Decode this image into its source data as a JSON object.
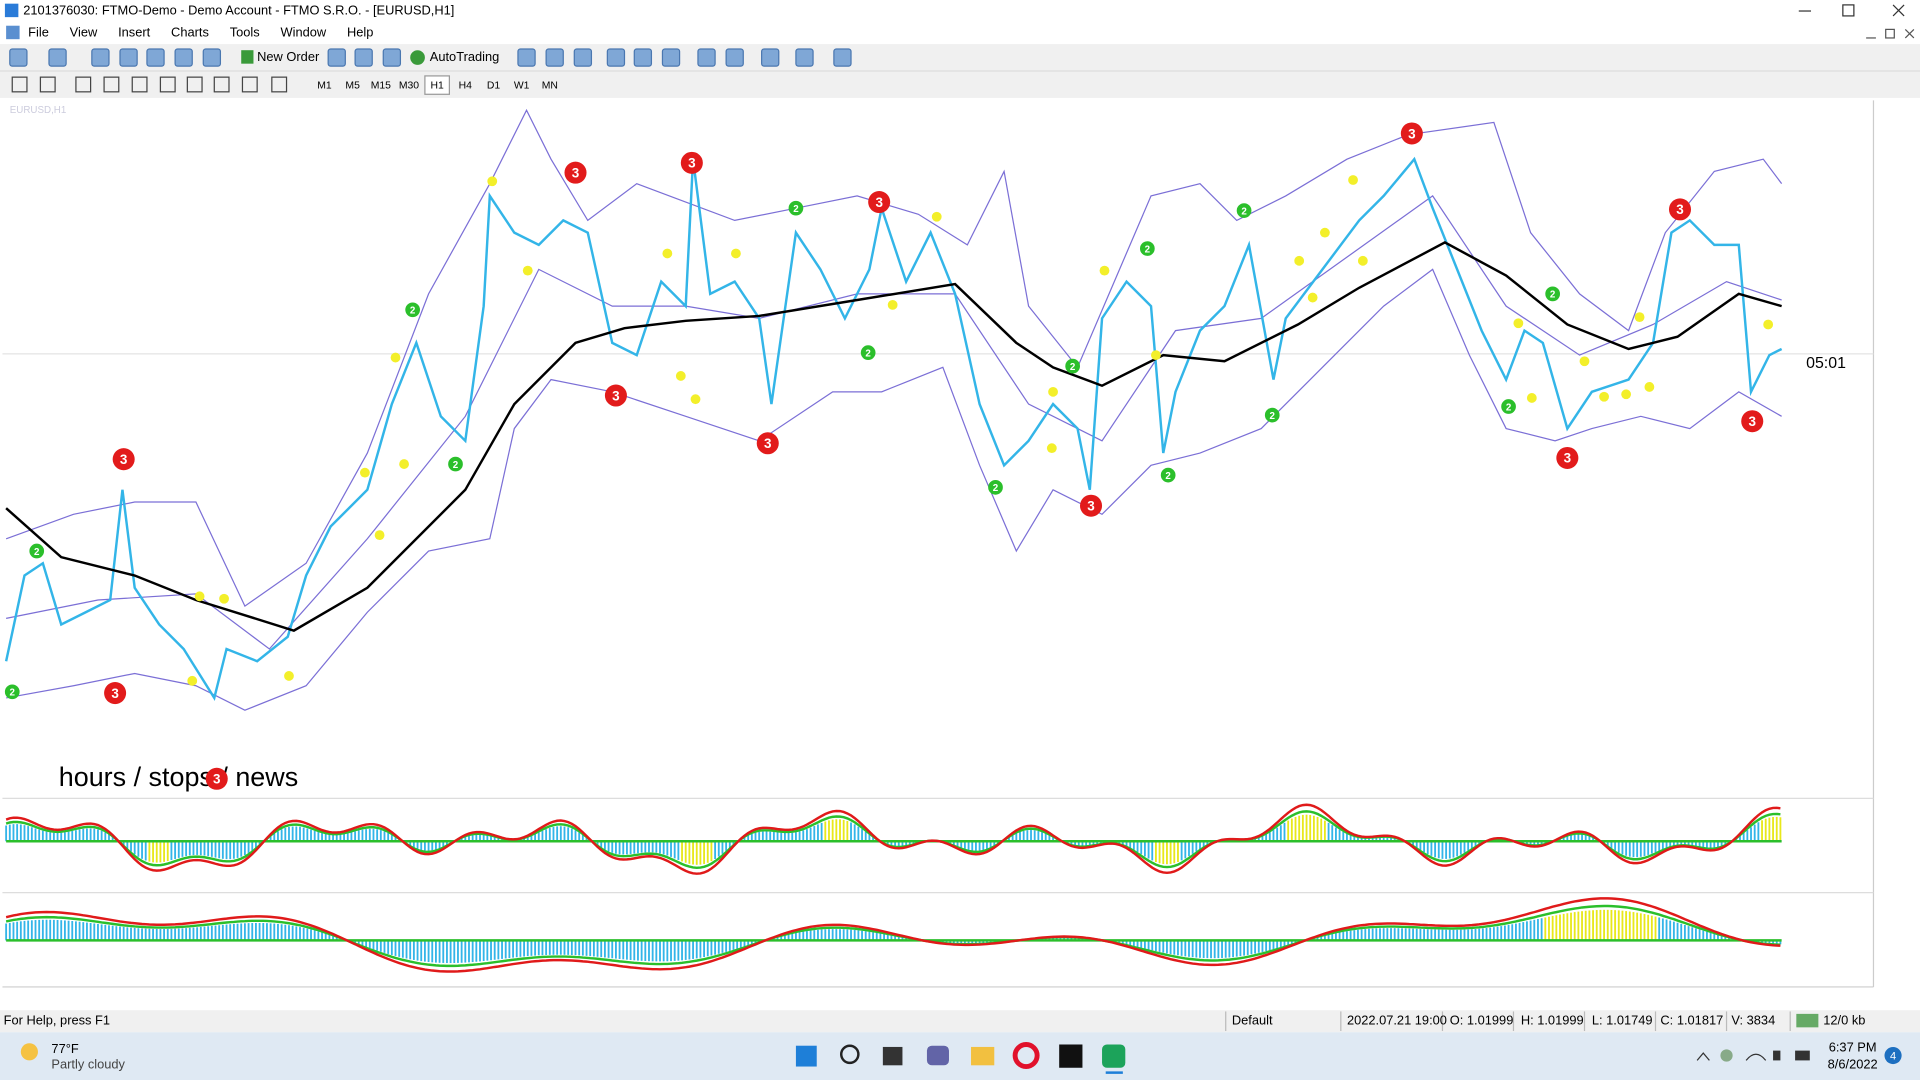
{
  "window": {
    "title": "2101376030: FTMO-Demo - Demo Account - FTMO S.R.O. - [EURUSD,H1]",
    "menu": [
      "File",
      "View",
      "Insert",
      "Charts",
      "Tools",
      "Window",
      "Help"
    ]
  },
  "toolbar": {
    "new_order": "New Order",
    "auto_trading": "AutoTrading",
    "timeframes": [
      "M1",
      "M5",
      "M15",
      "M30",
      "H1",
      "H4",
      "D1",
      "W1",
      "MN"
    ]
  },
  "chart": {
    "symbol": "EURUSD,H1",
    "annotation": "hours / stops / news",
    "countdown": "05:01",
    "strong_signal": "3",
    "weak_signal": "2"
  },
  "status_bar": {
    "help": "For Help, press F1",
    "profile": "Default",
    "time": "2022.07.21 19:00",
    "open": "O: 1.01999",
    "high": "H: 1.01999",
    "low": "L: 1.01749",
    "close": "C: 1.01817",
    "volume": "V: 3834",
    "traffic": "12/0 kb"
  },
  "taskbar": {
    "temperature": "77°F",
    "weather": "Partly cloudy",
    "time": "6:37 PM",
    "date": "8/6/2022",
    "notifications": "4"
  }
}
